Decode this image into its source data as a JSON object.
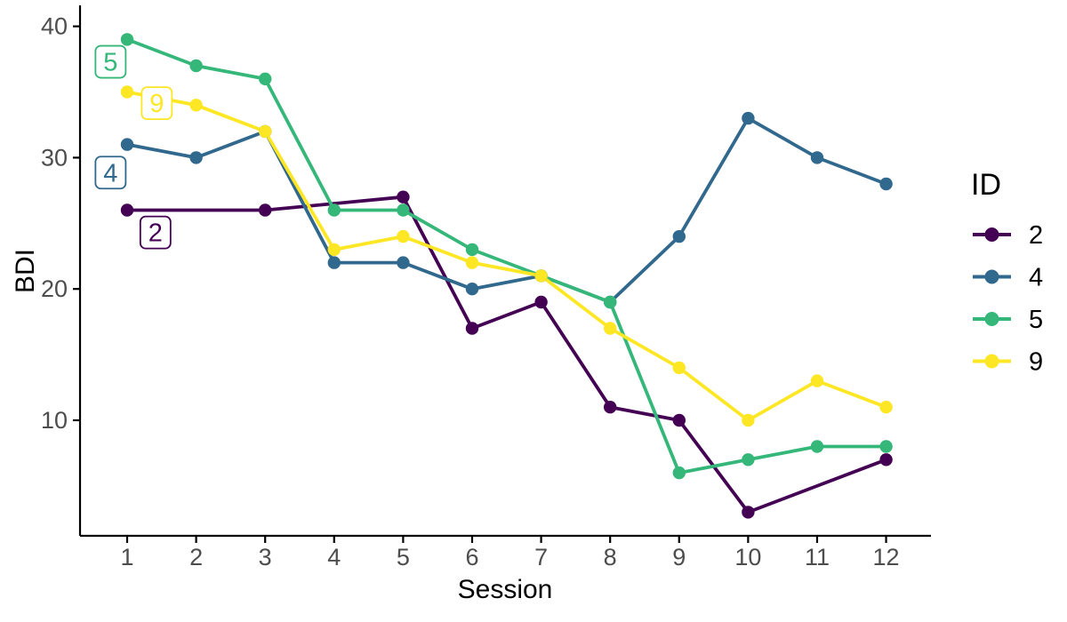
{
  "chart_data": {
    "type": "line",
    "title": "",
    "xlabel": "Session",
    "ylabel": "BDI",
    "x": [
      1,
      2,
      3,
      4,
      5,
      6,
      7,
      8,
      9,
      10,
      11,
      12
    ],
    "x_ticks": [
      "1",
      "2",
      "3",
      "4",
      "5",
      "6",
      "7",
      "8",
      "9",
      "10",
      "11",
      "12"
    ],
    "y_ticks": [
      10,
      20,
      30,
      40
    ],
    "xlim": [
      0.317,
      12.65
    ],
    "ylim": [
      1.2,
      41.6
    ],
    "grid": false,
    "series": [
      {
        "name": "2",
        "color": "#440154",
        "values": [
          26,
          null,
          26,
          null,
          27,
          17,
          19,
          11,
          10,
          3,
          null,
          7
        ]
      },
      {
        "name": "4",
        "color": "#31688E",
        "values": [
          31,
          30,
          32,
          22,
          22,
          20,
          21,
          19,
          24,
          33,
          30,
          28
        ]
      },
      {
        "name": "5",
        "color": "#35B779",
        "values": [
          39,
          37,
          36,
          26,
          26,
          23,
          21,
          19,
          6,
          7,
          8,
          8
        ]
      },
      {
        "name": "9",
        "color": "#FDE725",
        "values": [
          35,
          34,
          32,
          23,
          24,
          22,
          21,
          17,
          14,
          10,
          13,
          11
        ]
      }
    ],
    "point_labels": [
      {
        "text": "5",
        "x": 0.76,
        "y": 37.3,
        "color": "#35B779"
      },
      {
        "text": "9",
        "x": 1.43,
        "y": 34.15,
        "color": "#FDE725"
      },
      {
        "text": "4",
        "x": 0.76,
        "y": 28.86,
        "color": "#31688E"
      },
      {
        "text": "2",
        "x": 1.41,
        "y": 24.3,
        "color": "#440154"
      }
    ],
    "legend": {
      "title": "ID",
      "position": "right",
      "entries": [
        {
          "label": "2",
          "color": "#440154"
        },
        {
          "label": "4",
          "color": "#31688E"
        },
        {
          "label": "5",
          "color": "#35B779"
        },
        {
          "label": "9",
          "color": "#FDE725"
        }
      ]
    },
    "colors": {
      "axis_text": "#4D4D4D",
      "axis_title": "#000000",
      "axis_line": "#000000",
      "background": "#FFFFFF"
    }
  }
}
